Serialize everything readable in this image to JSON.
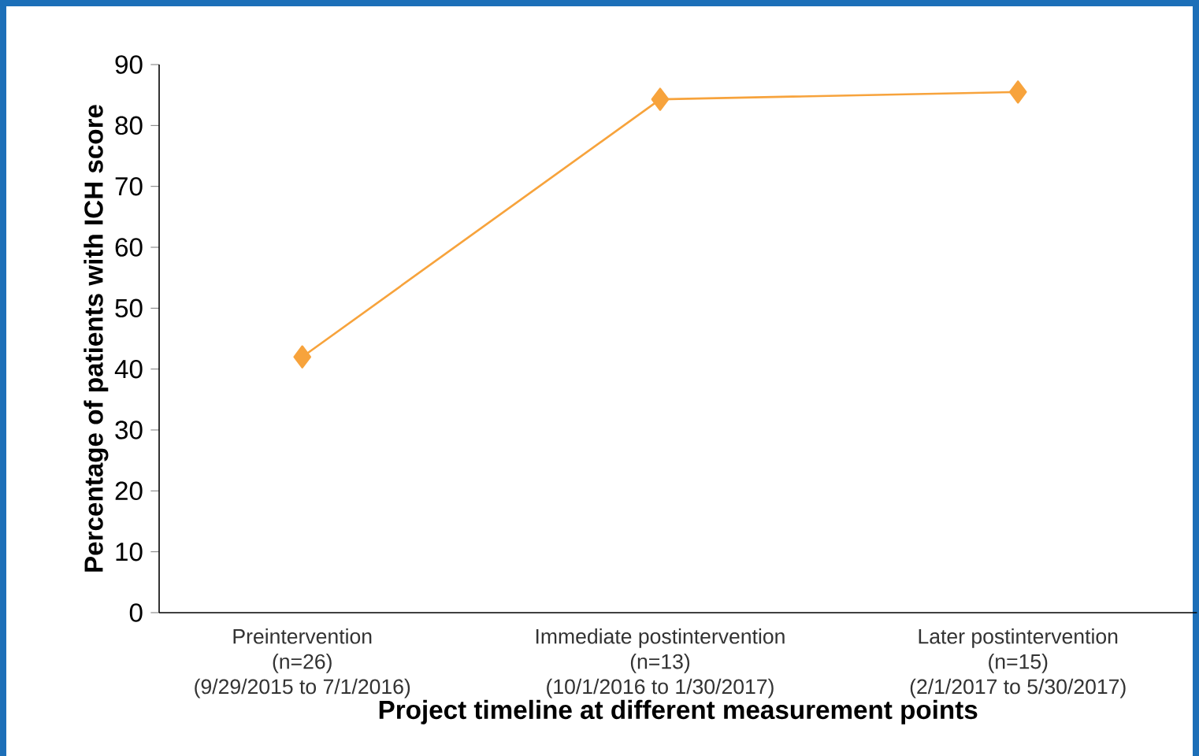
{
  "chart_data": {
    "type": "line",
    "xlabel": "Project timeline at different measurement points",
    "ylabel": "Percentage of patients with ICH score",
    "categories": [
      "Preintervention\n(n=26)\n(9/29/2015 to 7/1/2016)",
      "Immediate postintervention\n(n=13)\n(10/1/2016 to 1/30/2017)",
      "Later postintervention\n(n=15)\n(2/1/2017 to 5/30/2017)"
    ],
    "values": [
      42,
      84.3,
      85.5
    ],
    "color": "#f7a33c",
    "marker": "diamond",
    "line_style": "solid",
    "ylim": [
      0,
      90
    ],
    "yticks": [
      0,
      10,
      20,
      30,
      40,
      50,
      60,
      70,
      80,
      90
    ],
    "grid": false
  }
}
